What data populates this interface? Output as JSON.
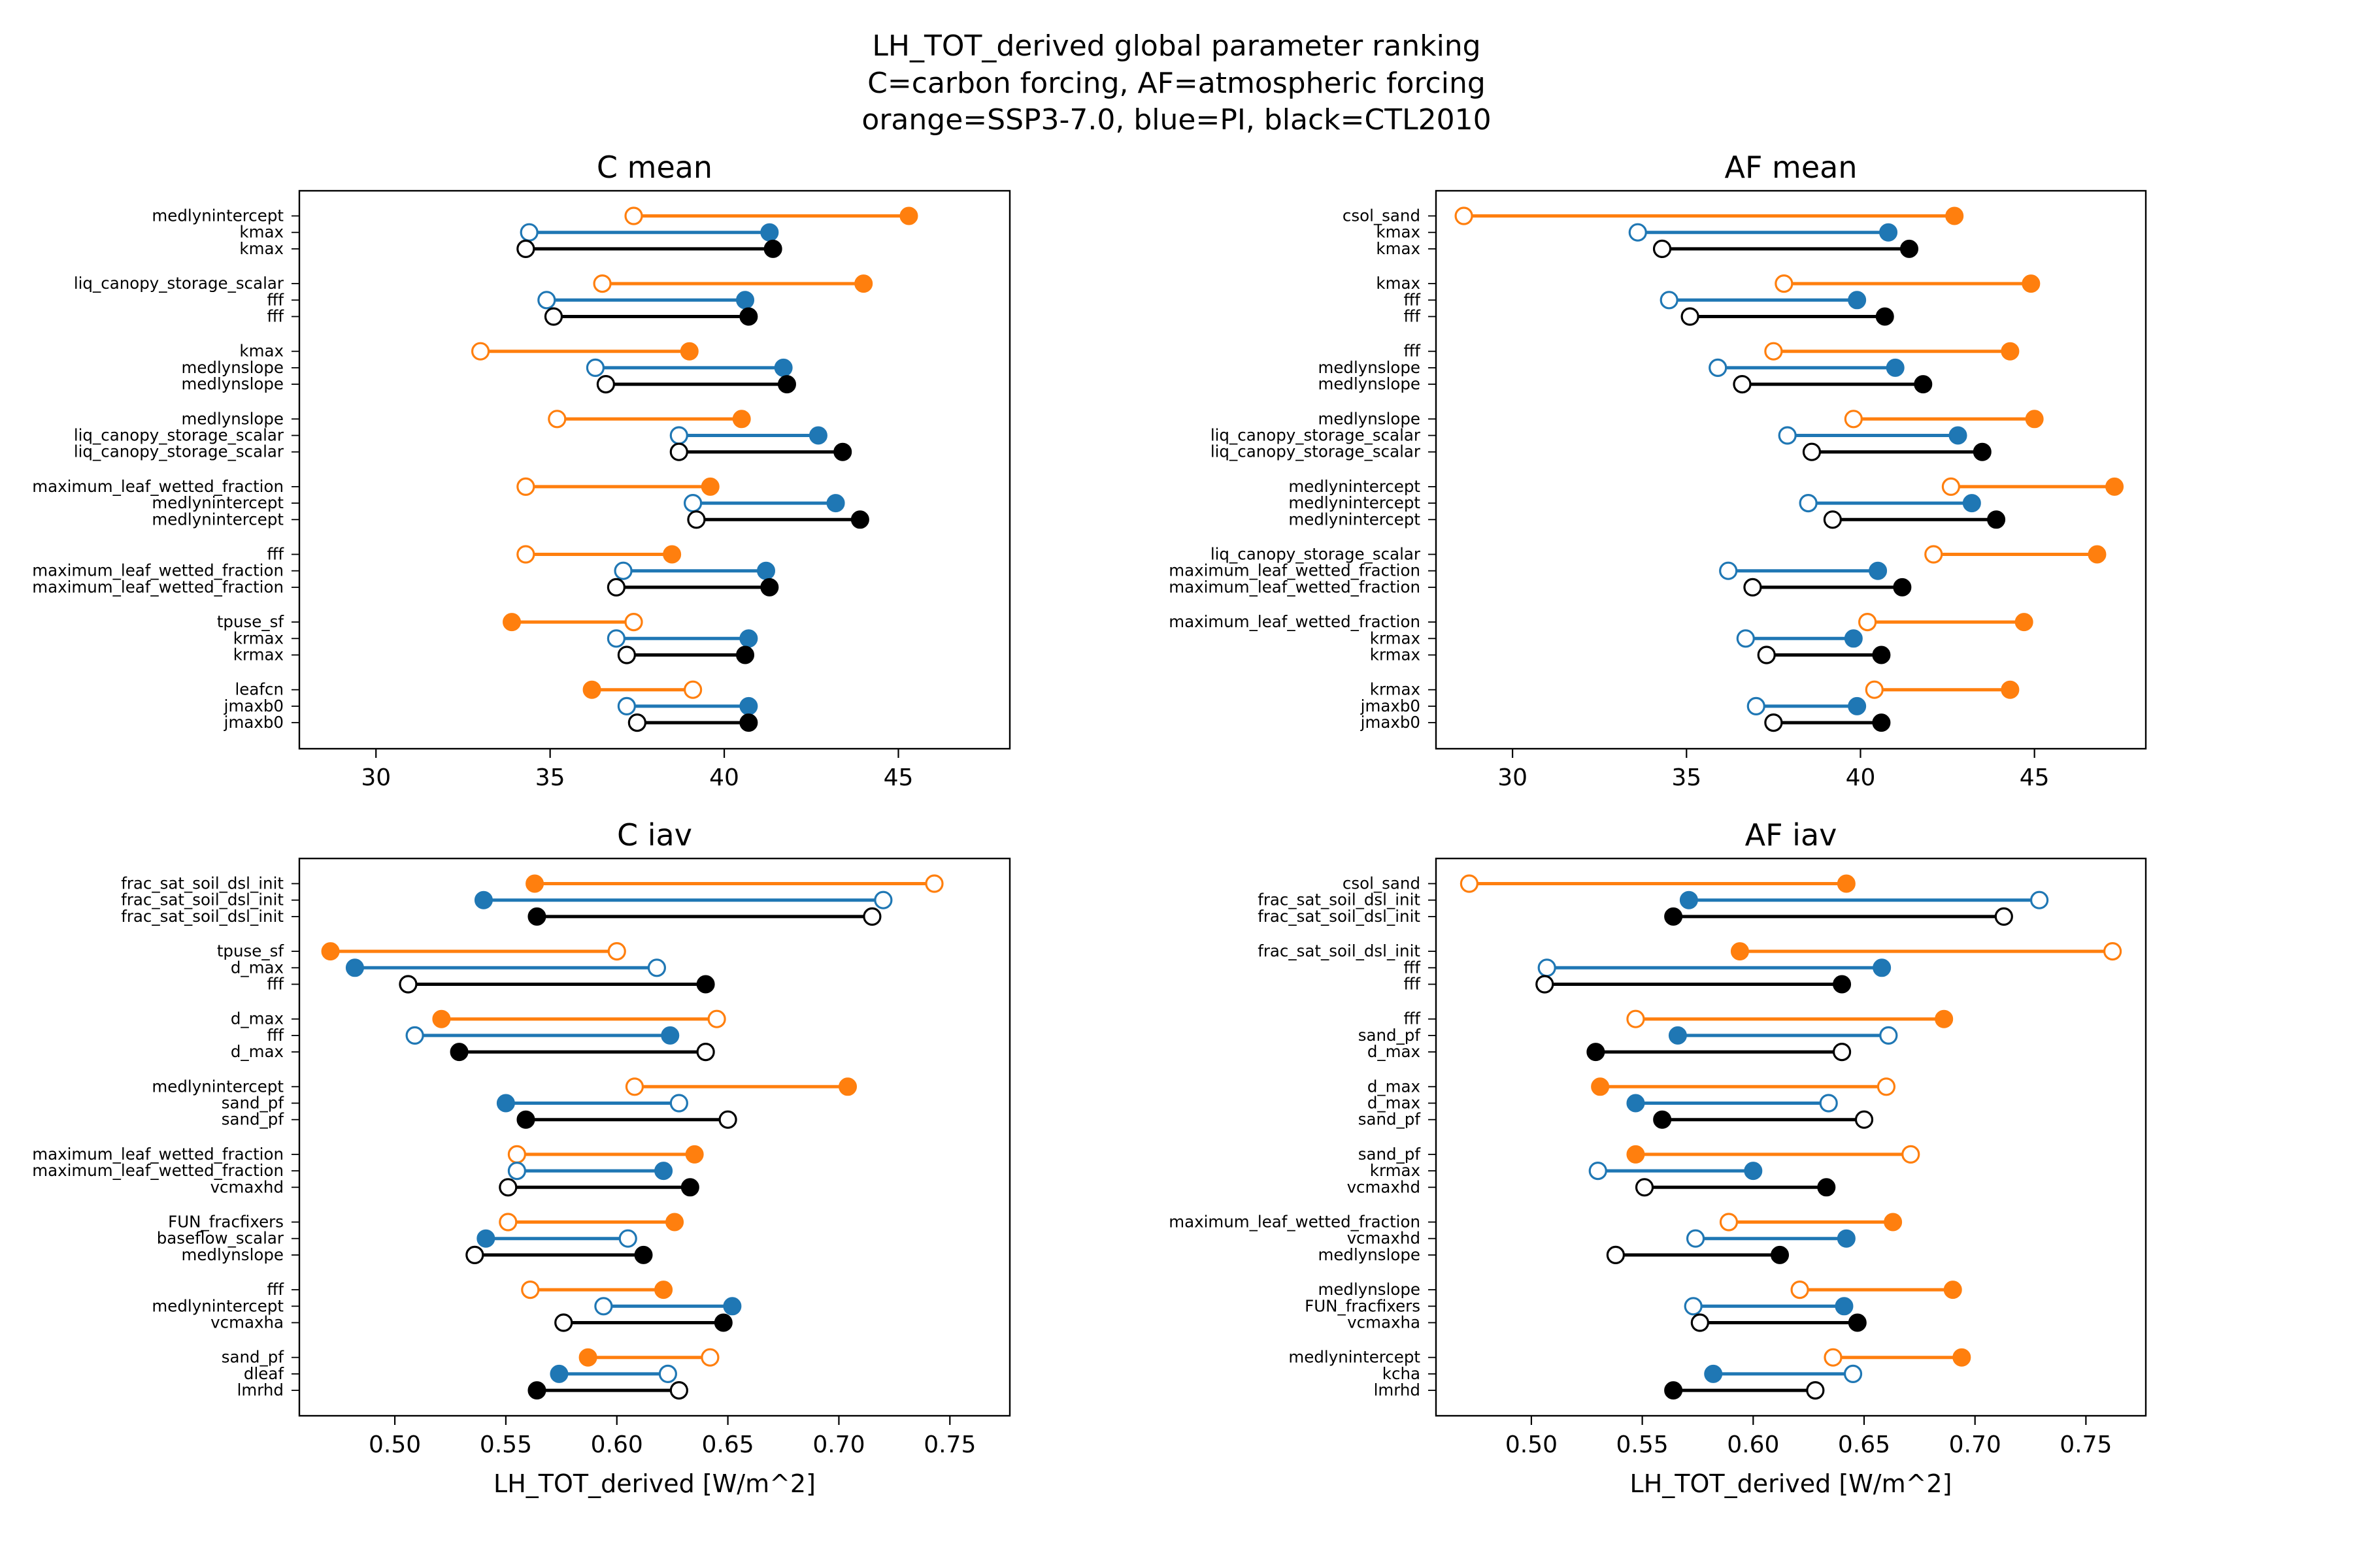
{
  "figure": {
    "title_lines": [
      "LH_TOT_derived global parameter ranking",
      "C=carbon forcing, AF=atmospheric forcing",
      "orange=SSP3-7.0, blue=PI, black=CTL2010"
    ]
  },
  "colors": {
    "orange": "#ff7f0e",
    "blue": "#1f77b4",
    "black": "#000000"
  },
  "chart_data": [
    {
      "type": "dumbbell",
      "title": "C mean",
      "xlabel": "",
      "xlim": [
        27.8,
        48.2
      ],
      "xticks": [
        30,
        35,
        40,
        45
      ],
      "xtick_labels": [
        "30",
        "35",
        "40",
        "45"
      ],
      "legend_note": "open marker = one end of range, filled marker = other end",
      "groups": [
        {
          "rows": [
            {
              "label": "medlynintercept",
              "color": "orange",
              "open": 37.4,
              "filled": 45.3
            },
            {
              "label": "kmax",
              "color": "blue",
              "open": 34.4,
              "filled": 41.3
            },
            {
              "label": "kmax",
              "color": "black",
              "open": 34.3,
              "filled": 41.4
            }
          ]
        },
        {
          "rows": [
            {
              "label": "liq_canopy_storage_scalar",
              "color": "orange",
              "open": 36.5,
              "filled": 44.0
            },
            {
              "label": "fff",
              "color": "blue",
              "open": 34.9,
              "filled": 40.6
            },
            {
              "label": "fff",
              "color": "black",
              "open": 35.1,
              "filled": 40.7
            }
          ]
        },
        {
          "rows": [
            {
              "label": "kmax",
              "color": "orange",
              "open": 33.0,
              "filled": 39.0
            },
            {
              "label": "medlynslope",
              "color": "blue",
              "open": 36.3,
              "filled": 41.7
            },
            {
              "label": "medlynslope",
              "color": "black",
              "open": 36.6,
              "filled": 41.8
            }
          ]
        },
        {
          "rows": [
            {
              "label": "medlynslope",
              "color": "orange",
              "open": 35.2,
              "filled": 40.5
            },
            {
              "label": "liq_canopy_storage_scalar",
              "color": "blue",
              "open": 38.7,
              "filled": 42.7
            },
            {
              "label": "liq_canopy_storage_scalar",
              "color": "black",
              "open": 38.7,
              "filled": 43.4
            }
          ]
        },
        {
          "rows": [
            {
              "label": "maximum_leaf_wetted_fraction",
              "color": "orange",
              "open": 34.3,
              "filled": 39.6
            },
            {
              "label": "medlynintercept",
              "color": "blue",
              "open": 39.1,
              "filled": 43.2
            },
            {
              "label": "medlynintercept",
              "color": "black",
              "open": 39.2,
              "filled": 43.9
            }
          ]
        },
        {
          "rows": [
            {
              "label": "fff",
              "color": "orange",
              "open": 34.3,
              "filled": 38.5
            },
            {
              "label": "maximum_leaf_wetted_fraction",
              "color": "blue",
              "open": 37.1,
              "filled": 41.2
            },
            {
              "label": "maximum_leaf_wetted_fraction",
              "color": "black",
              "open": 36.9,
              "filled": 41.3
            }
          ]
        },
        {
          "rows": [
            {
              "label": "tpuse_sf",
              "color": "orange",
              "open": 37.4,
              "filled": 33.9
            },
            {
              "label": "krmax",
              "color": "blue",
              "open": 36.9,
              "filled": 40.7
            },
            {
              "label": "krmax",
              "color": "black",
              "open": 37.2,
              "filled": 40.6
            }
          ]
        },
        {
          "rows": [
            {
              "label": "leafcn",
              "color": "orange",
              "open": 39.1,
              "filled": 36.2
            },
            {
              "label": "jmaxb0",
              "color": "blue",
              "open": 37.2,
              "filled": 40.7
            },
            {
              "label": "jmaxb0",
              "color": "black",
              "open": 37.5,
              "filled": 40.7
            }
          ]
        }
      ]
    },
    {
      "type": "dumbbell",
      "title": "AF mean",
      "xlabel": "",
      "xlim": [
        27.8,
        48.2
      ],
      "xticks": [
        30,
        35,
        40,
        45
      ],
      "xtick_labels": [
        "30",
        "35",
        "40",
        "45"
      ],
      "groups": [
        {
          "rows": [
            {
              "label": "csol_sand",
              "color": "orange",
              "open": 28.6,
              "filled": 42.7
            },
            {
              "label": "kmax",
              "color": "blue",
              "open": 33.6,
              "filled": 40.8
            },
            {
              "label": "kmax",
              "color": "black",
              "open": 34.3,
              "filled": 41.4
            }
          ]
        },
        {
          "rows": [
            {
              "label": "kmax",
              "color": "orange",
              "open": 37.8,
              "filled": 44.9
            },
            {
              "label": "fff",
              "color": "blue",
              "open": 34.5,
              "filled": 39.9
            },
            {
              "label": "fff",
              "color": "black",
              "open": 35.1,
              "filled": 40.7
            }
          ]
        },
        {
          "rows": [
            {
              "label": "fff",
              "color": "orange",
              "open": 37.5,
              "filled": 44.3
            },
            {
              "label": "medlynslope",
              "color": "blue",
              "open": 35.9,
              "filled": 41.0
            },
            {
              "label": "medlynslope",
              "color": "black",
              "open": 36.6,
              "filled": 41.8
            }
          ]
        },
        {
          "rows": [
            {
              "label": "medlynslope",
              "color": "orange",
              "open": 39.8,
              "filled": 45.0
            },
            {
              "label": "liq_canopy_storage_scalar",
              "color": "blue",
              "open": 37.9,
              "filled": 42.8
            },
            {
              "label": "liq_canopy_storage_scalar",
              "color": "black",
              "open": 38.6,
              "filled": 43.5
            }
          ]
        },
        {
          "rows": [
            {
              "label": "medlynintercept",
              "color": "orange",
              "open": 42.6,
              "filled": 47.3
            },
            {
              "label": "medlynintercept",
              "color": "blue",
              "open": 38.5,
              "filled": 43.2
            },
            {
              "label": "medlynintercept",
              "color": "black",
              "open": 39.2,
              "filled": 43.9
            }
          ]
        },
        {
          "rows": [
            {
              "label": "liq_canopy_storage_scalar",
              "color": "orange",
              "open": 42.1,
              "filled": 46.8
            },
            {
              "label": "maximum_leaf_wetted_fraction",
              "color": "blue",
              "open": 36.2,
              "filled": 40.5
            },
            {
              "label": "maximum_leaf_wetted_fraction",
              "color": "black",
              "open": 36.9,
              "filled": 41.2
            }
          ]
        },
        {
          "rows": [
            {
              "label": "maximum_leaf_wetted_fraction",
              "color": "orange",
              "open": 40.2,
              "filled": 44.7
            },
            {
              "label": "krmax",
              "color": "blue",
              "open": 36.7,
              "filled": 39.8
            },
            {
              "label": "krmax",
              "color": "black",
              "open": 37.3,
              "filled": 40.6
            }
          ]
        },
        {
          "rows": [
            {
              "label": "krmax",
              "color": "orange",
              "open": 40.4,
              "filled": 44.3
            },
            {
              "label": "jmaxb0",
              "color": "blue",
              "open": 37.0,
              "filled": 39.9
            },
            {
              "label": "jmaxb0",
              "color": "black",
              "open": 37.5,
              "filled": 40.6
            }
          ]
        }
      ]
    },
    {
      "type": "dumbbell",
      "title": "C iav",
      "xlabel": "LH_TOT_derived [W/m^2]",
      "xlim": [
        0.457,
        0.777
      ],
      "xticks": [
        0.5,
        0.55,
        0.6,
        0.65,
        0.7,
        0.75
      ],
      "xtick_labels": [
        "0.50",
        "0.55",
        "0.60",
        "0.65",
        "0.70",
        "0.75"
      ],
      "groups": [
        {
          "rows": [
            {
              "label": "frac_sat_soil_dsl_init",
              "color": "orange",
              "open": 0.743,
              "filled": 0.563
            },
            {
              "label": "frac_sat_soil_dsl_init",
              "color": "blue",
              "open": 0.72,
              "filled": 0.54
            },
            {
              "label": "frac_sat_soil_dsl_init",
              "color": "black",
              "open": 0.715,
              "filled": 0.564
            }
          ]
        },
        {
          "rows": [
            {
              "label": "tpuse_sf",
              "color": "orange",
              "open": 0.6,
              "filled": 0.471
            },
            {
              "label": "d_max",
              "color": "blue",
              "open": 0.618,
              "filled": 0.482
            },
            {
              "label": "fff",
              "color": "black",
              "open": 0.506,
              "filled": 0.64
            }
          ]
        },
        {
          "rows": [
            {
              "label": "d_max",
              "color": "orange",
              "open": 0.645,
              "filled": 0.521
            },
            {
              "label": "fff",
              "color": "blue",
              "open": 0.509,
              "filled": 0.624
            },
            {
              "label": "d_max",
              "color": "black",
              "open": 0.64,
              "filled": 0.529
            }
          ]
        },
        {
          "rows": [
            {
              "label": "medlynintercept",
              "color": "orange",
              "open": 0.608,
              "filled": 0.704
            },
            {
              "label": "sand_pf",
              "color": "blue",
              "open": 0.628,
              "filled": 0.55
            },
            {
              "label": "sand_pf",
              "color": "black",
              "open": 0.65,
              "filled": 0.559
            }
          ]
        },
        {
          "rows": [
            {
              "label": "maximum_leaf_wetted_fraction",
              "color": "orange",
              "open": 0.555,
              "filled": 0.635
            },
            {
              "label": "maximum_leaf_wetted_fraction",
              "color": "blue",
              "open": 0.555,
              "filled": 0.621
            },
            {
              "label": "vcmaxhd",
              "color": "black",
              "open": 0.551,
              "filled": 0.633
            }
          ]
        },
        {
          "rows": [
            {
              "label": "FUN_fracfixers",
              "color": "orange",
              "open": 0.551,
              "filled": 0.626
            },
            {
              "label": "baseflow_scalar",
              "color": "blue",
              "open": 0.605,
              "filled": 0.541
            },
            {
              "label": "medlynslope",
              "color": "black",
              "open": 0.536,
              "filled": 0.612
            }
          ]
        },
        {
          "rows": [
            {
              "label": "fff",
              "color": "orange",
              "open": 0.561,
              "filled": 0.621
            },
            {
              "label": "medlynintercept",
              "color": "blue",
              "open": 0.594,
              "filled": 0.652
            },
            {
              "label": "vcmaxha",
              "color": "black",
              "open": 0.576,
              "filled": 0.648
            }
          ]
        },
        {
          "rows": [
            {
              "label": "sand_pf",
              "color": "orange",
              "open": 0.642,
              "filled": 0.587
            },
            {
              "label": "dleaf",
              "color": "blue",
              "open": 0.623,
              "filled": 0.574
            },
            {
              "label": "lmrhd",
              "color": "black",
              "open": 0.628,
              "filled": 0.564
            }
          ]
        }
      ]
    },
    {
      "type": "dumbbell",
      "title": "AF iav",
      "xlabel": "LH_TOT_derived [W/m^2]",
      "xlim": [
        0.457,
        0.777
      ],
      "xticks": [
        0.5,
        0.55,
        0.6,
        0.65,
        0.7,
        0.75
      ],
      "xtick_labels": [
        "0.50",
        "0.55",
        "0.60",
        "0.65",
        "0.70",
        "0.75"
      ],
      "groups": [
        {
          "rows": [
            {
              "label": "csol_sand",
              "color": "orange",
              "open": 0.472,
              "filled": 0.642
            },
            {
              "label": "frac_sat_soil_dsl_init",
              "color": "blue",
              "open": 0.729,
              "filled": 0.571
            },
            {
              "label": "frac_sat_soil_dsl_init",
              "color": "black",
              "open": 0.713,
              "filled": 0.564
            }
          ]
        },
        {
          "rows": [
            {
              "label": "frac_sat_soil_dsl_init",
              "color": "orange",
              "open": 0.762,
              "filled": 0.594
            },
            {
              "label": "fff",
              "color": "blue",
              "open": 0.507,
              "filled": 0.658
            },
            {
              "label": "fff",
              "color": "black",
              "open": 0.506,
              "filled": 0.64
            }
          ]
        },
        {
          "rows": [
            {
              "label": "fff",
              "color": "orange",
              "open": 0.547,
              "filled": 0.686
            },
            {
              "label": "sand_pf",
              "color": "blue",
              "open": 0.661,
              "filled": 0.566
            },
            {
              "label": "d_max",
              "color": "black",
              "open": 0.64,
              "filled": 0.529
            }
          ]
        },
        {
          "rows": [
            {
              "label": "d_max",
              "color": "orange",
              "open": 0.66,
              "filled": 0.531
            },
            {
              "label": "d_max",
              "color": "blue",
              "open": 0.634,
              "filled": 0.547
            },
            {
              "label": "sand_pf",
              "color": "black",
              "open": 0.65,
              "filled": 0.559
            }
          ]
        },
        {
          "rows": [
            {
              "label": "sand_pf",
              "color": "orange",
              "open": 0.671,
              "filled": 0.547
            },
            {
              "label": "krmax",
              "color": "blue",
              "open": 0.53,
              "filled": 0.6
            },
            {
              "label": "vcmaxhd",
              "color": "black",
              "open": 0.551,
              "filled": 0.633
            }
          ]
        },
        {
          "rows": [
            {
              "label": "maximum_leaf_wetted_fraction",
              "color": "orange",
              "open": 0.589,
              "filled": 0.663
            },
            {
              "label": "vcmaxhd",
              "color": "blue",
              "open": 0.574,
              "filled": 0.642
            },
            {
              "label": "medlynslope",
              "color": "black",
              "open": 0.538,
              "filled": 0.612
            }
          ]
        },
        {
          "rows": [
            {
              "label": "medlynslope",
              "color": "orange",
              "open": 0.621,
              "filled": 0.69
            },
            {
              "label": "FUN_fracfixers",
              "color": "blue",
              "open": 0.573,
              "filled": 0.641
            },
            {
              "label": "vcmaxha",
              "color": "black",
              "open": 0.576,
              "filled": 0.647
            }
          ]
        },
        {
          "rows": [
            {
              "label": "medlynintercept",
              "color": "orange",
              "open": 0.636,
              "filled": 0.694
            },
            {
              "label": "kcha",
              "color": "blue",
              "open": 0.645,
              "filled": 0.582
            },
            {
              "label": "lmrhd",
              "color": "black",
              "open": 0.628,
              "filled": 0.564
            }
          ]
        }
      ]
    }
  ]
}
